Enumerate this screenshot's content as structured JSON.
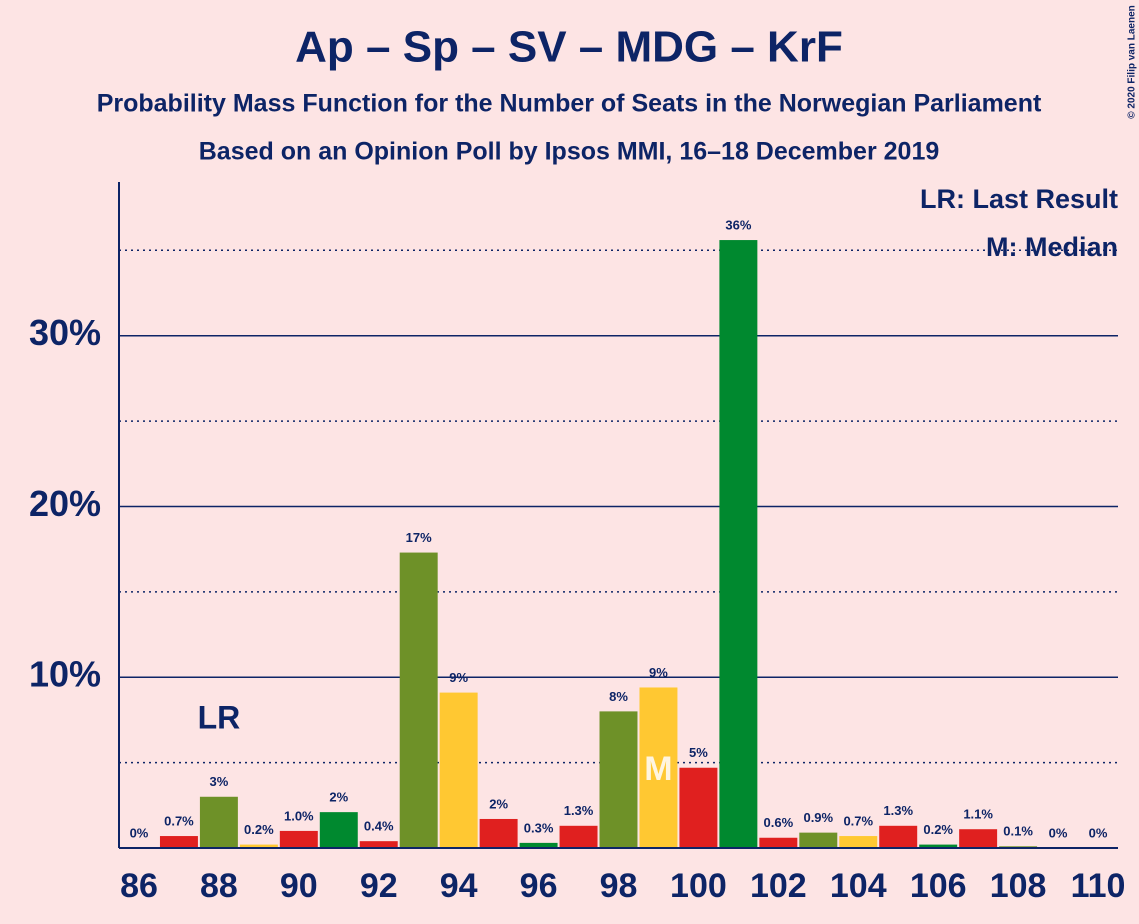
{
  "chart_data": {
    "type": "bar",
    "title": "Ap – Sp – SV – MDG – KrF",
    "subtitle": "Probability Mass Function for the Number of Seats in the Norwegian Parliament",
    "subtitle2": "Based on an Opinion Poll by Ipsos MMI, 16–18 December 2019",
    "copyright": "© 2020 Filip van Laenen",
    "legend": [
      "LR: Last Result",
      "M: Median"
    ],
    "legend_position": "upper right",
    "x": [
      86,
      87,
      88,
      89,
      90,
      91,
      92,
      93,
      94,
      95,
      96,
      97,
      98,
      99,
      100,
      101,
      102,
      103,
      104,
      105,
      106,
      107,
      108,
      109,
      110
    ],
    "values": [
      0,
      0.7,
      3.0,
      0.2,
      1.0,
      2.1,
      0.4,
      17.3,
      9.1,
      1.7,
      0.3,
      1.3,
      8.0,
      9.4,
      4.7,
      35.6,
      0.6,
      0.9,
      0.7,
      1.3,
      0.2,
      1.1,
      0.1,
      0,
      0
    ],
    "value_labels": [
      "0%",
      "0.7%",
      "3%",
      "0.2%",
      "1.0%",
      "2%",
      "0.4%",
      "17%",
      "9%",
      "2%",
      "0.3%",
      "1.3%",
      "8%",
      "9%",
      "5%",
      "36%",
      "0.6%",
      "0.9%",
      "0.7%",
      "1.3%",
      "0.2%",
      "1.1%",
      "0.1%",
      "0%",
      "0%"
    ],
    "colors": [
      "#00892f",
      "#e0201f",
      "#6e9128",
      "#ffc832",
      "#e0201f",
      "#00892f",
      "#e0201f",
      "#6e9128",
      "#ffc832",
      "#e0201f",
      "#00892f",
      "#e0201f",
      "#6e9128",
      "#ffc832",
      "#e0201f",
      "#00892f",
      "#e0201f",
      "#6e9128",
      "#ffc832",
      "#e0201f",
      "#00892f",
      "#e0201f",
      "#6e9128",
      "#ffc832",
      "#e0201f"
    ],
    "annotations": [
      {
        "label": "LR",
        "x": 88
      },
      {
        "label": "M",
        "x": 99
      }
    ],
    "xlim": [
      85.5,
      110.5
    ],
    "xticks": [
      86,
      88,
      90,
      92,
      94,
      96,
      98,
      100,
      102,
      104,
      106,
      108,
      110
    ],
    "ylim": [
      0,
      39
    ],
    "yticks": [
      {
        "value": 10,
        "label": "10%"
      },
      {
        "value": 20,
        "label": "20%"
      },
      {
        "value": 30,
        "label": "30%"
      }
    ],
    "minor_yticks": [
      5,
      15,
      25,
      35
    ],
    "grid": true
  }
}
